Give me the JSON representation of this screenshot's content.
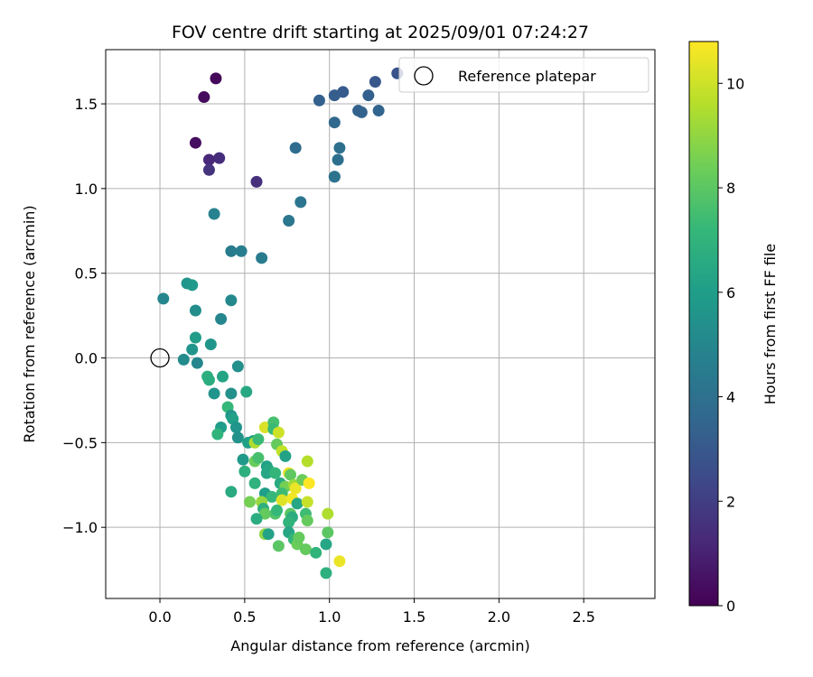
{
  "chart_data": {
    "type": "scatter",
    "title": "FOV centre drift starting at 2025/09/01 07:24:27",
    "xlabel": "Angular distance from reference (arcmin)",
    "ylabel": "Rotation from reference (arcmin)",
    "xlim": [
      -0.32,
      2.92
    ],
    "ylim": [
      -1.42,
      1.82
    ],
    "xticks": [
      0.0,
      0.5,
      1.0,
      1.5,
      2.0,
      2.5
    ],
    "xtick_labels": [
      "0.0",
      "0.5",
      "1.0",
      "1.5",
      "2.0",
      "2.5"
    ],
    "yticks": [
      -1.0,
      -0.5,
      0.0,
      0.5,
      1.0,
      1.5
    ],
    "ytick_labels": [
      "−1.0",
      "−0.5",
      "0.0",
      "0.5",
      "1.0",
      "1.5"
    ],
    "grid": true,
    "legend": {
      "placement": "top-right",
      "entries": [
        "Reference platepar"
      ]
    },
    "colormap": "viridis",
    "colorbar": {
      "label": "Hours from first FF file",
      "range": [
        0,
        10.8
      ],
      "ticks": [
        0,
        2,
        4,
        6,
        8,
        10
      ],
      "tick_labels": [
        "0",
        "2",
        "4",
        "6",
        "8",
        "10"
      ],
      "colors": [
        "#440154",
        "#482878",
        "#3e4989",
        "#31688e",
        "#26828e",
        "#1f9e89",
        "#35b779",
        "#6ece58",
        "#b5de2b",
        "#fde725"
      ]
    },
    "reference": {
      "x": 0.0,
      "y": 0.0,
      "label": "Reference platepar"
    },
    "series": [
      {
        "points": [
          [
            0.33,
            1.65,
            0.2
          ],
          [
            0.26,
            1.54,
            0.3
          ],
          [
            0.21,
            1.27,
            0.4
          ],
          [
            0.29,
            1.17,
            1.2
          ],
          [
            0.35,
            1.18,
            1.4
          ],
          [
            0.29,
            1.11,
            1.6
          ],
          [
            0.57,
            1.04,
            1.5
          ],
          [
            1.4,
            1.68,
            2.8
          ],
          [
            1.27,
            1.63,
            3.0
          ],
          [
            1.08,
            1.57,
            3.1
          ],
          [
            1.03,
            1.55,
            3.2
          ],
          [
            1.23,
            1.55,
            3.3
          ],
          [
            0.94,
            1.52,
            3.3
          ],
          [
            1.17,
            1.46,
            3.4
          ],
          [
            1.19,
            1.45,
            3.4
          ],
          [
            1.29,
            1.46,
            3.5
          ],
          [
            1.03,
            1.39,
            3.6
          ],
          [
            0.8,
            1.24,
            3.8
          ],
          [
            1.06,
            1.24,
            3.9
          ],
          [
            1.05,
            1.17,
            3.9
          ],
          [
            1.03,
            1.07,
            4.0
          ],
          [
            1.03,
            1.07,
            4.1
          ],
          [
            0.83,
            0.92,
            4.2
          ],
          [
            0.76,
            0.81,
            4.3
          ],
          [
            0.32,
            0.85,
            4.8
          ],
          [
            0.42,
            0.63,
            4.5
          ],
          [
            0.48,
            0.63,
            4.6
          ],
          [
            0.6,
            0.59,
            4.5
          ],
          [
            0.02,
            0.35,
            5.0
          ],
          [
            0.42,
            0.34,
            5.1
          ],
          [
            0.16,
            0.44,
            5.6
          ],
          [
            0.19,
            0.43,
            5.8
          ],
          [
            0.21,
            0.28,
            5.3
          ],
          [
            0.36,
            0.23,
            5.0
          ],
          [
            0.21,
            0.12,
            5.9
          ],
          [
            0.3,
            0.08,
            5.6
          ],
          [
            0.19,
            0.05,
            5.6
          ],
          [
            0.14,
            -0.01,
            5.2
          ],
          [
            0.22,
            -0.03,
            5.0
          ],
          [
            0.46,
            -0.05,
            5.4
          ],
          [
            0.28,
            -0.11,
            6.8
          ],
          [
            0.29,
            -0.13,
            6.7
          ],
          [
            0.37,
            -0.11,
            6.3
          ],
          [
            0.51,
            -0.2,
            6.5
          ],
          [
            0.32,
            -0.21,
            5.6
          ],
          [
            0.42,
            -0.21,
            5.4
          ],
          [
            0.4,
            -0.29,
            7.2
          ],
          [
            0.42,
            -0.34,
            5.7
          ],
          [
            0.43,
            -0.36,
            6.1
          ],
          [
            0.36,
            -0.41,
            6.0
          ],
          [
            0.45,
            -0.41,
            5.6
          ],
          [
            0.34,
            -0.45,
            7.0
          ],
          [
            0.46,
            -0.47,
            5.5
          ],
          [
            0.55,
            -0.49,
            6.0
          ],
          [
            0.52,
            -0.5,
            6.1
          ],
          [
            0.56,
            -0.5,
            9.5
          ],
          [
            0.58,
            -0.48,
            7.3
          ],
          [
            0.62,
            -0.41,
            10.2
          ],
          [
            0.67,
            -0.38,
            7.6
          ],
          [
            0.67,
            -0.42,
            7.3
          ],
          [
            0.7,
            -0.44,
            10.0
          ],
          [
            0.69,
            -0.51,
            8.2
          ],
          [
            0.72,
            -0.55,
            9.8
          ],
          [
            0.74,
            -0.58,
            6.2
          ],
          [
            0.49,
            -0.6,
            5.8
          ],
          [
            0.56,
            -0.61,
            8.3
          ],
          [
            0.58,
            -0.59,
            7.6
          ],
          [
            0.5,
            -0.67,
            6.8
          ],
          [
            0.63,
            -0.64,
            6.2
          ],
          [
            0.64,
            -0.66,
            6.5
          ],
          [
            0.63,
            -0.68,
            6.4
          ],
          [
            0.68,
            -0.68,
            7.1
          ],
          [
            0.76,
            -0.68,
            10.4
          ],
          [
            0.77,
            -0.69,
            8.1
          ],
          [
            0.71,
            -0.74,
            6.6
          ],
          [
            0.74,
            -0.76,
            8.5
          ],
          [
            0.79,
            -0.75,
            9.2
          ],
          [
            0.8,
            -0.77,
            10.5
          ],
          [
            0.84,
            -0.72,
            8.3
          ],
          [
            0.88,
            -0.74,
            10.8
          ],
          [
            0.87,
            -0.61,
            9.6
          ],
          [
            0.56,
            -0.74,
            6.9
          ],
          [
            0.62,
            -0.8,
            6.0
          ],
          [
            0.66,
            -0.82,
            7.2
          ],
          [
            0.72,
            -0.8,
            7.4
          ],
          [
            0.72,
            -0.84,
            10.3
          ],
          [
            0.78,
            -0.83,
            10.6
          ],
          [
            0.81,
            -0.86,
            6.4
          ],
          [
            0.87,
            -0.85,
            9.9
          ],
          [
            0.42,
            -0.79,
            6.6
          ],
          [
            0.53,
            -0.85,
            8.5
          ],
          [
            0.6,
            -0.85,
            9.1
          ],
          [
            0.61,
            -0.89,
            6.8
          ],
          [
            0.62,
            -0.92,
            8.2
          ],
          [
            0.68,
            -0.92,
            7.8
          ],
          [
            0.69,
            -0.9,
            7.2
          ],
          [
            0.77,
            -0.92,
            8.0
          ],
          [
            0.78,
            -0.94,
            6.7
          ],
          [
            0.86,
            -0.92,
            7.4
          ],
          [
            0.87,
            -0.96,
            8.2
          ],
          [
            0.76,
            -0.97,
            7.0
          ],
          [
            0.99,
            -0.92,
            9.5
          ],
          [
            0.57,
            -0.95,
            6.7
          ],
          [
            0.76,
            -1.03,
            6.4
          ],
          [
            0.79,
            -1.07,
            7.1
          ],
          [
            0.81,
            -1.1,
            8.3
          ],
          [
            0.82,
            -1.06,
            8.2
          ],
          [
            0.62,
            -1.04,
            9.0
          ],
          [
            0.64,
            -1.04,
            6.2
          ],
          [
            0.7,
            -1.11,
            8.0
          ],
          [
            0.99,
            -1.03,
            8.0
          ],
          [
            0.86,
            -1.13,
            8.2
          ],
          [
            0.92,
            -1.15,
            7.0
          ],
          [
            0.98,
            -1.1,
            6.4
          ],
          [
            1.06,
            -1.2,
            10.5
          ],
          [
            0.98,
            -1.27,
            6.8
          ]
        ]
      }
    ]
  }
}
